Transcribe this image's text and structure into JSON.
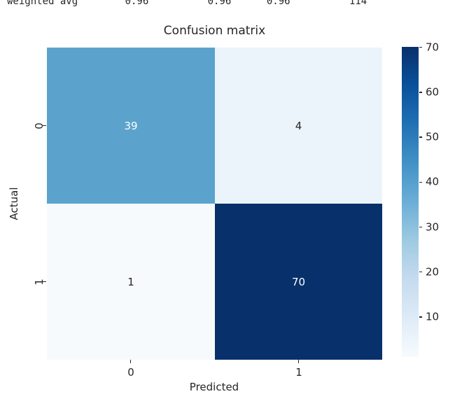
{
  "report_line": "weighted avg        0.96          0.96      0.96          114",
  "chart_data": {
    "type": "heatmap",
    "title": "Confusion matrix",
    "xlabel": "Predicted",
    "ylabel": "Actual",
    "x_categories": [
      "0",
      "1"
    ],
    "y_categories": [
      "0",
      "1"
    ],
    "matrix": [
      [
        39,
        4
      ],
      [
        1,
        70
      ]
    ],
    "vmin": 1,
    "vmax": 70,
    "colormap": "Blues",
    "colormap_stops": [
      "#08306b",
      "#08519c",
      "#2171b5",
      "#4292c6",
      "#6baed6",
      "#9ecae1",
      "#c6dbef",
      "#deebf7",
      "#f7fbff"
    ],
    "colorbar_ticks": [
      70,
      60,
      50,
      40,
      30,
      20,
      10
    ],
    "cell_colors": [
      [
        "#5ba3cd",
        "#ecf4fb"
      ],
      [
        "#f7fafd",
        "#08306b"
      ]
    ],
    "cell_text_colors": [
      [
        "#ffffff",
        "#262626"
      ],
      [
        "#262626",
        "#ffffff"
      ]
    ],
    "legend_position": "colorbar-right",
    "grid": false
  },
  "colors": {
    "background": "#ffffff",
    "text": "#262626",
    "annot_light": "#ffffff",
    "annot_dark": "#262626"
  }
}
